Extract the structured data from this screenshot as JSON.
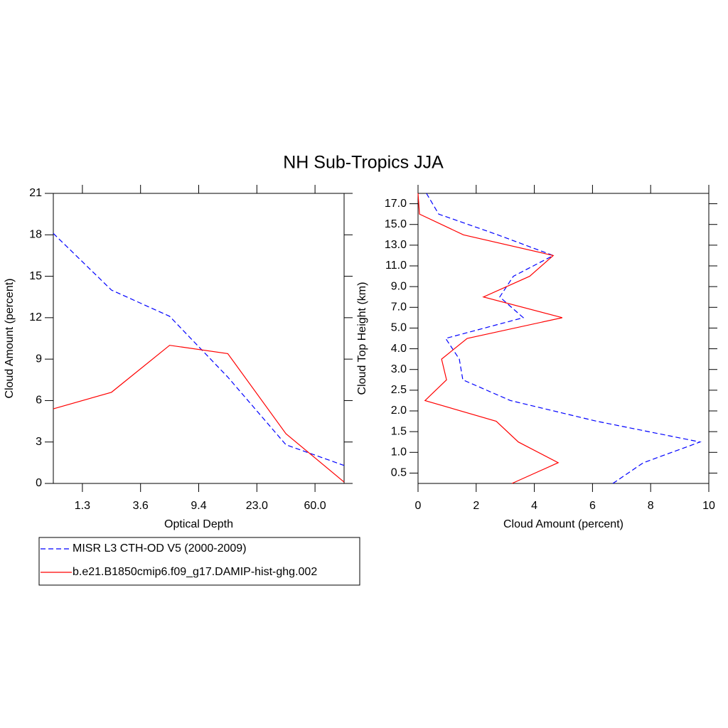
{
  "title": "NH Sub-Tropics JJA",
  "chart_data": [
    {
      "type": "line",
      "orientation": "vertical",
      "x_label": "Optical Depth",
      "y_label": "Cloud Amount (percent)",
      "x": [
        0,
        1,
        2,
        3,
        4,
        5
      ],
      "xlim": [
        0,
        5
      ],
      "xticks": [
        {
          "value": 0.5,
          "label": "1.3"
        },
        {
          "value": 1.5,
          "label": "3.6"
        },
        {
          "value": 2.5,
          "label": "9.4"
        },
        {
          "value": 3.5,
          "label": "23.0"
        },
        {
          "value": 4.5,
          "label": "60.0"
        }
      ],
      "ylim": [
        0,
        21
      ],
      "yticks": [
        0,
        3,
        6,
        9,
        12,
        15,
        18,
        21
      ],
      "series": [
        {
          "name": "MISR L3 CTH-OD V5 (2000-2009)",
          "color": "#0000ff",
          "dashed": true,
          "values": [
            18.1,
            14.0,
            12.1,
            7.7,
            2.8,
            1.3
          ]
        },
        {
          "name": "b.e21.B1850cmip6.f09_g17.DAMIP-hist-ghg.002",
          "color": "#ff0000",
          "dashed": false,
          "values": [
            5.4,
            6.6,
            10.0,
            9.4,
            3.6,
            0.1
          ]
        }
      ]
    },
    {
      "type": "line",
      "orientation": "horizontal",
      "x_label": "Cloud Amount (percent)",
      "y_label": "Cloud Top Height (km)",
      "xlim": [
        0,
        10
      ],
      "xticks": [
        0,
        2,
        4,
        6,
        8,
        10
      ],
      "y": [
        0,
        1,
        2,
        3,
        4,
        5,
        6,
        7,
        8,
        9,
        10,
        11,
        12,
        13,
        14
      ],
      "ylim": [
        0,
        14
      ],
      "yticks": [
        0.5,
        {
          "value": 1.5,
          "label": "1.0"
        },
        {
          "value": 2.5,
          "label": "1.5"
        },
        {
          "value": 3.5,
          "label": "2.0"
        },
        {
          "value": 4.5,
          "label": "2.5"
        },
        {
          "value": 5.5,
          "label": "3.0"
        },
        {
          "value": 6.5,
          "label": "4.0"
        },
        {
          "value": 7.5,
          "label": "5.0"
        },
        {
          "value": 8.5,
          "label": "7.0"
        },
        {
          "value": 9.5,
          "label": "9.0"
        },
        {
          "value": 10.5,
          "label": "11.0"
        },
        {
          "value": 11.5,
          "label": "13.0"
        },
        {
          "value": 12.5,
          "label": "15.0"
        },
        {
          "value": 13.5,
          "label": "17.0"
        }
      ],
      "series": [
        {
          "color": "#0000ff",
          "dashed": true,
          "values": [
            6.7,
            7.75,
            9.7,
            6.15,
            3.18,
            1.54,
            1.42,
            0.95,
            3.62,
            2.81,
            3.28,
            4.65,
            2.74,
            0.71,
            0.29
          ]
        },
        {
          "color": "#ff0000",
          "dashed": false,
          "values": [
            3.23,
            4.82,
            3.45,
            2.69,
            0.24,
            0.98,
            0.81,
            1.69,
            4.96,
            2.25,
            3.84,
            4.65,
            1.56,
            0.05,
            0.0
          ]
        }
      ]
    }
  ]
}
